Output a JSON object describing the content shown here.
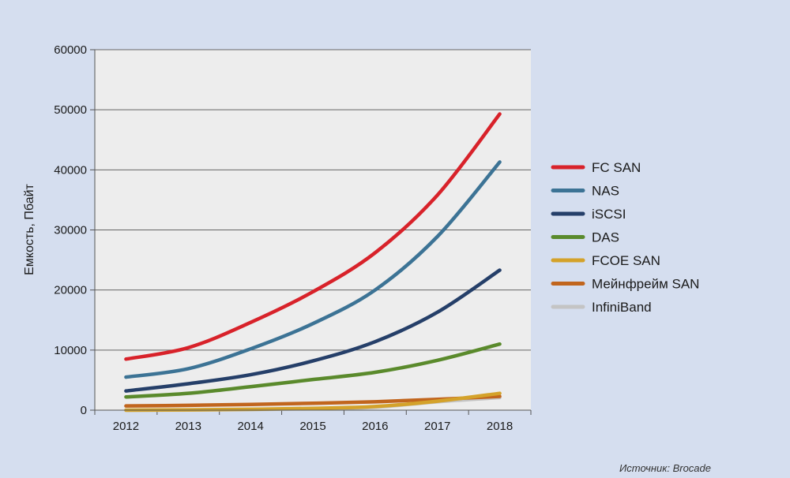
{
  "chart_data": {
    "type": "line",
    "title": "",
    "xlabel": "",
    "ylabel": "Емкость, Пбайт",
    "ylim": [
      0,
      60000
    ],
    "yticks": [
      "0",
      "10000",
      "20000",
      "30000",
      "40000",
      "50000",
      "60000"
    ],
    "categories": [
      "2012",
      "2013",
      "2014",
      "2015",
      "2016",
      "2017",
      "2018"
    ],
    "grid": true,
    "legend_position": "right",
    "series": [
      {
        "name": "FC SAN",
        "color": "#d8222a",
        "values": [
          8500,
          10400,
          14600,
          19700,
          26200,
          35800,
          49300
        ]
      },
      {
        "name": "NAS",
        "color": "#3c7395",
        "values": [
          5500,
          6900,
          10200,
          14400,
          20000,
          28900,
          41300
        ]
      },
      {
        "name": "iSCSI",
        "color": "#253f69",
        "values": [
          3200,
          4400,
          5900,
          8200,
          11400,
          16300,
          23300
        ]
      },
      {
        "name": "DAS",
        "color": "#5a8a2c",
        "values": [
          2200,
          2800,
          3900,
          5100,
          6300,
          8300,
          11000
        ]
      },
      {
        "name": "FCOE SAN",
        "color": "#d4a22a",
        "values": [
          0,
          50,
          150,
          300,
          600,
          1500,
          2800
        ]
      },
      {
        "name": "Мейнфрейм SAN",
        "color": "#c1651d",
        "values": [
          700,
          800,
          950,
          1150,
          1400,
          1800,
          2300
        ]
      },
      {
        "name": "InfiniBand",
        "color": "#c4c4c4",
        "values": [
          0,
          30,
          100,
          250,
          500,
          1400,
          2100
        ]
      }
    ]
  },
  "source": "Источник: Brocade"
}
